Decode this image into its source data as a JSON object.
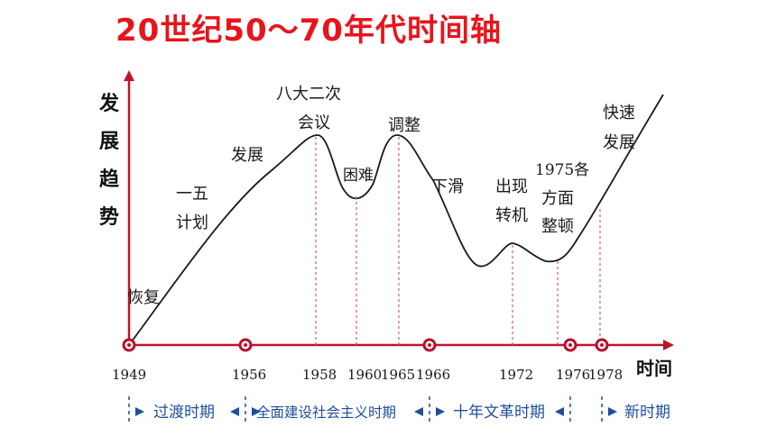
{
  "title": "20世纪50～70年代时间轴",
  "y_axis_label": [
    "发",
    "展",
    "趋",
    "势"
  ],
  "x_axis_label": "时间",
  "colors": {
    "title": "#e8141b",
    "axis": "#c0142a",
    "curve": "#1a1a1a",
    "period_text": "#1f4e9c",
    "guide": "#e05a6a"
  },
  "years": [
    {
      "label": "1949",
      "marker": true
    },
    {
      "label": "1956",
      "marker": true
    },
    {
      "label": "1958",
      "marker": false
    },
    {
      "label": "1960",
      "marker": false
    },
    {
      "label": "1965",
      "marker": false
    },
    {
      "label": "1966",
      "marker": true
    },
    {
      "label": "1972",
      "marker": false
    },
    {
      "label": "1976",
      "marker": true
    },
    {
      "label": "1978",
      "marker": true
    }
  ],
  "periods": [
    "过渡时期",
    "全面建设社会主义时期",
    "十年文革时期",
    "新时期"
  ],
  "annotations": {
    "huifu": "恢复",
    "yiwu": [
      "一五",
      "计划"
    ],
    "fazhan": "发展",
    "bada": [
      "八大二次",
      "会议"
    ],
    "kunnan": "困难",
    "tiaozheng": "调整",
    "xiahua": "下滑",
    "zhuanji": [
      "出现",
      "转机"
    ],
    "zhengdun": [
      "1975各",
      "方面",
      "整顿"
    ],
    "kuaisu": [
      "快速",
      "发展"
    ]
  }
}
